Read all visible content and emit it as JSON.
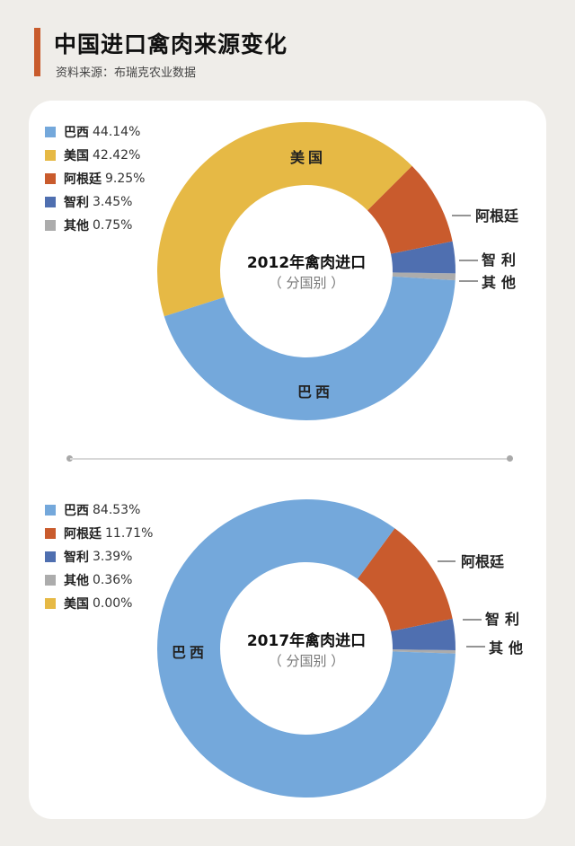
{
  "header": {
    "title": "中国进口禽肉来源变化",
    "source": "资料来源：布瑞克农业数据"
  },
  "colors": {
    "brazil": "#74a8db",
    "usa": "#e6b945",
    "argentina": "#c95b2d",
    "chile": "#4f6fb0",
    "other": "#acacac",
    "accent": "#c85b2c"
  },
  "chart_data": [
    {
      "type": "pie",
      "title": "2012年禽肉进口",
      "subtitle": "（分国别）",
      "categories": [
        "巴西",
        "美国",
        "阿根廷",
        "智利",
        "其他"
      ],
      "values": [
        44.14,
        42.42,
        9.25,
        3.45,
        0.75
      ],
      "unit": "%",
      "legend_position": "top-left",
      "donut": true
    },
    {
      "type": "pie",
      "title": "2017年禽肉进口",
      "subtitle": "（分国别）",
      "categories": [
        "巴西",
        "阿根廷",
        "智利",
        "其他",
        "美国"
      ],
      "values": [
        84.53,
        11.71,
        3.39,
        0.36,
        0.0
      ],
      "unit": "%",
      "legend_position": "top-left",
      "donut": true
    }
  ],
  "chart1": {
    "center_title": "2012年禽肉进口",
    "center_sub": "（ 分国别 ）",
    "legend": [
      {
        "name": "巴西",
        "value": "44.14%",
        "color": "#74a8db"
      },
      {
        "name": "美国",
        "value": "42.42%",
        "color": "#e6b945"
      },
      {
        "name": "阿根廷",
        "value": "9.25%",
        "color": "#c95b2d"
      },
      {
        "name": "智利",
        "value": "3.45%",
        "color": "#4f6fb0"
      },
      {
        "name": "其他",
        "value": "0.75%",
        "color": "#acacac"
      }
    ],
    "labels": {
      "usa": "美国",
      "brazil": "巴西",
      "argentina": "阿根廷",
      "chile": "智利",
      "other": "其他"
    }
  },
  "chart2": {
    "center_title": "2017年禽肉进口",
    "center_sub": "（ 分国别 ）",
    "legend": [
      {
        "name": "巴西",
        "value": "84.53%",
        "color": "#74a8db"
      },
      {
        "name": "阿根廷",
        "value": "11.71%",
        "color": "#c95b2d"
      },
      {
        "name": "智利",
        "value": "3.39%",
        "color": "#4f6fb0"
      },
      {
        "name": "其他",
        "value": "0.36%",
        "color": "#acacac"
      },
      {
        "name": "美国",
        "value": "0.00%",
        "color": "#e6b945"
      }
    ],
    "labels": {
      "brazil": "巴西",
      "argentina": "阿根廷",
      "chile": "智利",
      "other": "其他"
    }
  }
}
